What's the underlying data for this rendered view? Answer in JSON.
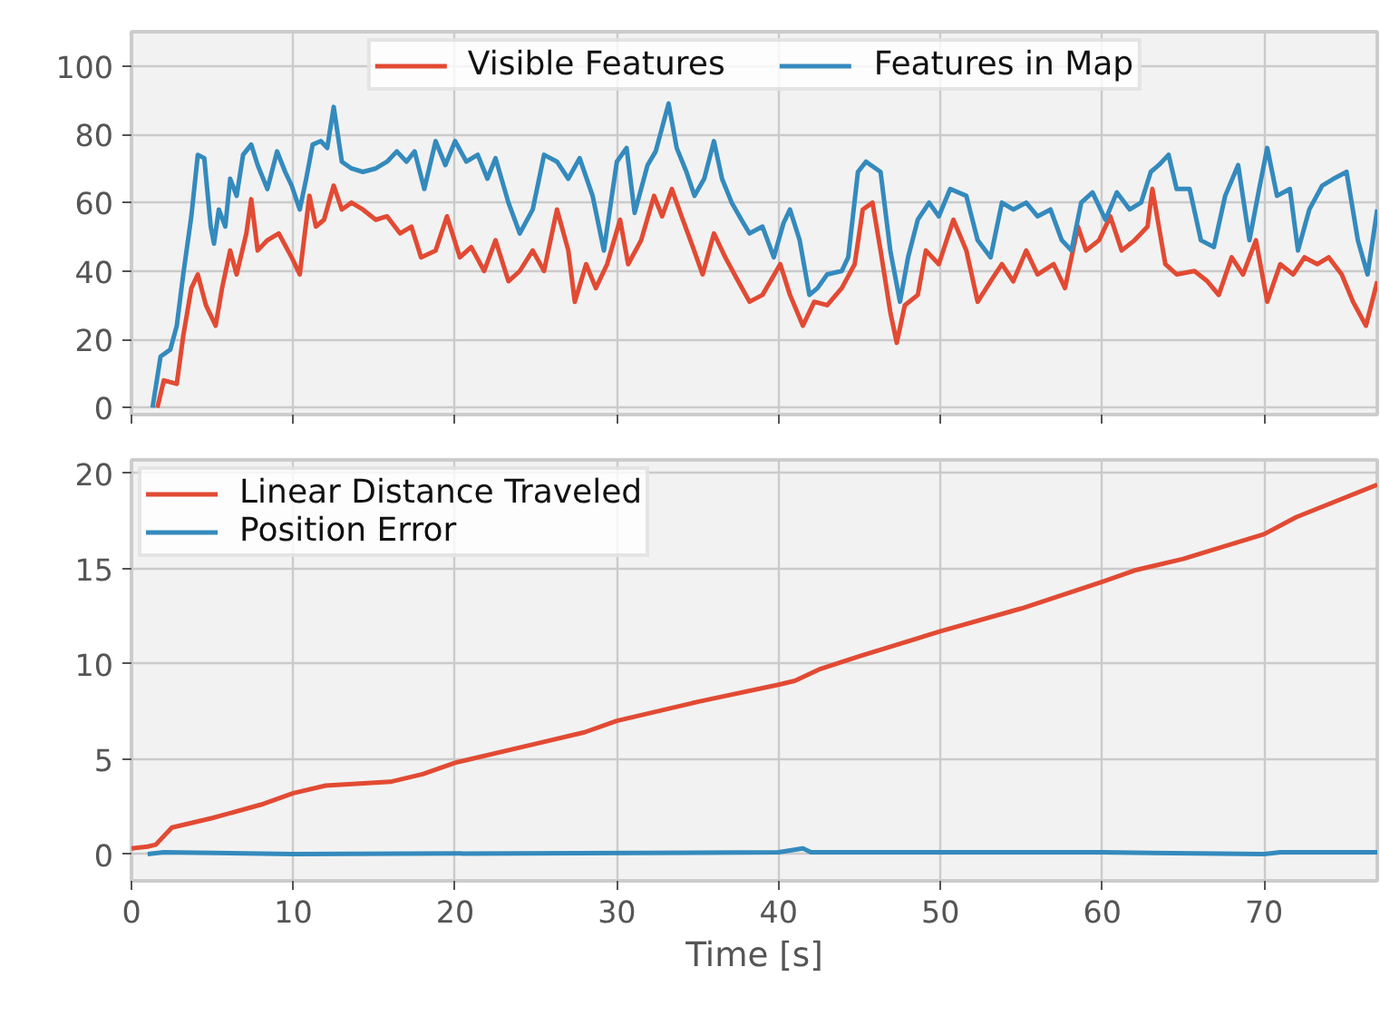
{
  "chart_data": [
    {
      "type": "line",
      "xlim": [
        0,
        77
      ],
      "ylim": [
        -2,
        110
      ],
      "xticks": [
        0,
        10,
        20,
        30,
        40,
        50,
        60,
        70
      ],
      "yticks": [
        0,
        20,
        40,
        60,
        80,
        100
      ],
      "tick_labels": "y",
      "grid": true,
      "legend": "top",
      "line_style": "solid",
      "marker": "none",
      "series": [
        {
          "name": "Visible Features",
          "color": "#e24a33",
          "x": [
            1.6,
            2.0,
            2.8,
            3.2,
            3.7,
            4.1,
            4.6,
            5.2,
            5.6,
            6.1,
            6.5,
            7.1,
            7.4,
            7.8,
            8.4,
            9.1,
            9.9,
            10.4,
            11.0,
            11.4,
            11.9,
            12.5,
            13.0,
            13.6,
            14.3,
            15.1,
            15.8,
            16.6,
            17.3,
            17.9,
            18.8,
            19.5,
            20.3,
            21.0,
            21.8,
            22.5,
            23.3,
            24.0,
            24.8,
            25.5,
            26.3,
            27.0,
            27.4,
            28.1,
            28.7,
            29.4,
            30.2,
            30.7,
            31.5,
            32.3,
            32.8,
            33.4,
            34.0,
            34.7,
            35.3,
            36.0,
            36.7,
            37.5,
            38.2,
            39.0,
            40.1,
            40.7,
            41.5,
            42.2,
            43.0,
            43.9,
            44.7,
            45.2,
            45.8,
            46.3,
            46.9,
            47.3,
            47.8,
            48.6,
            49.1,
            49.9,
            50.8,
            51.6,
            52.3,
            53.1,
            53.8,
            54.5,
            55.3,
            56.0,
            57.0,
            57.7,
            58.5,
            59.0,
            59.8,
            60.5,
            61.2,
            62.0,
            62.8,
            63.1,
            63.9,
            64.6,
            65.7,
            66.5,
            67.2,
            68.0,
            68.7,
            69.5,
            70.2,
            71.0,
            71.8,
            72.5,
            73.3,
            74.0,
            74.8,
            75.5,
            76.3,
            77.0
          ],
          "values": [
            0,
            8,
            7,
            21,
            35,
            39,
            30,
            24,
            35,
            46,
            39,
            51,
            61,
            46,
            49,
            51,
            44,
            39,
            62,
            53,
            55,
            65,
            58,
            60,
            58,
            55,
            56,
            51,
            53,
            44,
            46,
            56,
            44,
            47,
            40,
            49,
            37,
            40,
            46,
            40,
            58,
            46,
            31,
            42,
            35,
            42,
            55,
            42,
            49,
            62,
            56,
            64,
            56,
            47,
            39,
            51,
            44,
            37,
            31,
            33,
            42,
            33,
            24,
            31,
            30,
            35,
            42,
            58,
            60,
            46,
            28,
            19,
            30,
            33,
            46,
            42,
            55,
            46,
            31,
            37,
            42,
            37,
            46,
            39,
            42,
            35,
            53,
            46,
            49,
            56,
            46,
            49,
            53,
            64,
            42,
            39,
            40,
            37,
            33,
            44,
            39,
            49,
            31,
            42,
            39,
            44,
            42,
            44,
            39,
            31,
            24,
            37
          ]
        },
        {
          "name": "Features in Map",
          "color": "#348abd",
          "x": [
            1.3,
            1.8,
            2.4,
            2.8,
            3.2,
            3.7,
            4.1,
            4.5,
            4.9,
            5.1,
            5.4,
            5.8,
            6.1,
            6.5,
            6.9,
            7.4,
            7.8,
            8.4,
            9.0,
            9.5,
            9.9,
            10.4,
            10.8,
            11.2,
            11.7,
            12.1,
            12.5,
            13.0,
            13.6,
            14.3,
            15.1,
            15.8,
            16.4,
            17.0,
            17.5,
            18.1,
            18.8,
            19.4,
            20.0,
            20.7,
            21.4,
            22.0,
            22.5,
            23.3,
            24.0,
            24.8,
            25.5,
            26.3,
            27.0,
            27.7,
            28.5,
            29.2,
            30.0,
            30.6,
            31.1,
            31.9,
            32.4,
            33.2,
            33.7,
            34.3,
            34.8,
            35.4,
            36.0,
            36.5,
            37.1,
            37.7,
            38.2,
            39.0,
            39.7,
            40.3,
            40.7,
            41.3,
            41.9,
            42.4,
            43.0,
            43.9,
            44.3,
            44.9,
            45.4,
            46.3,
            46.9,
            47.5,
            48.0,
            48.6,
            49.3,
            49.9,
            50.6,
            51.6,
            52.3,
            53.1,
            53.8,
            54.5,
            55.3,
            56.0,
            56.8,
            57.5,
            58.1,
            58.7,
            59.4,
            60.2,
            60.9,
            61.7,
            62.4,
            63.0,
            63.5,
            64.1,
            64.6,
            65.4,
            66.1,
            66.9,
            67.6,
            68.4,
            69.1,
            69.7,
            70.2,
            70.8,
            71.6,
            72.1,
            72.8,
            73.6,
            74.3,
            75.1,
            75.8,
            76.4,
            77.0
          ],
          "values": [
            0,
            15,
            17,
            24,
            39,
            56,
            74,
            73,
            53,
            48,
            58,
            53,
            67,
            62,
            74,
            77,
            71,
            64,
            75,
            69,
            65,
            58,
            67,
            77,
            78,
            76,
            88,
            72,
            70,
            69,
            70,
            72,
            75,
            72,
            75,
            64,
            78,
            71,
            78,
            72,
            74,
            67,
            73,
            60,
            51,
            58,
            74,
            72,
            67,
            73,
            62,
            46,
            72,
            76,
            57,
            71,
            75,
            89,
            76,
            69,
            62,
            67,
            78,
            67,
            60,
            55,
            51,
            53,
            44,
            54,
            58,
            49,
            33,
            35,
            39,
            40,
            44,
            69,
            72,
            69,
            46,
            31,
            44,
            55,
            60,
            56,
            64,
            62,
            49,
            44,
            60,
            58,
            60,
            56,
            58,
            49,
            46,
            60,
            63,
            55,
            63,
            58,
            60,
            69,
            71,
            74,
            64,
            64,
            49,
            47,
            62,
            71,
            49,
            64,
            76,
            62,
            64,
            46,
            58,
            65,
            67,
            69,
            49,
            39,
            58
          ]
        }
      ]
    },
    {
      "type": "line",
      "xlabel": "Time [s]",
      "xlim": [
        0,
        77
      ],
      "ylim": [
        -1.4,
        20.7
      ],
      "xticks": [
        0,
        10,
        20,
        30,
        40,
        50,
        60,
        70
      ],
      "yticks": [
        0,
        5,
        10,
        15,
        20
      ],
      "grid": true,
      "legend": "top left",
      "line_style": "solid",
      "marker": "none",
      "series": [
        {
          "name": "Linear Distance Traveled",
          "color": "#e24a33",
          "x": [
            0,
            1,
            1.5,
            2.5,
            5,
            8,
            10,
            12,
            16,
            18,
            20,
            25,
            28,
            30,
            35,
            40,
            41,
            42.5,
            45,
            50,
            55,
            60,
            62,
            65,
            70,
            72,
            77
          ],
          "values": [
            0.3,
            0.4,
            0.5,
            1.4,
            1.9,
            2.6,
            3.2,
            3.6,
            3.8,
            4.2,
            4.8,
            5.8,
            6.4,
            7.0,
            8.0,
            8.9,
            9.1,
            9.7,
            10.4,
            11.7,
            12.9,
            14.3,
            14.9,
            15.5,
            16.8,
            17.7,
            19.4
          ]
        },
        {
          "name": "Position Error",
          "color": "#348abd",
          "x": [
            1,
            2,
            10,
            40,
            41.5,
            42,
            60,
            70,
            71,
            77
          ],
          "values": [
            0,
            0.1,
            0,
            0.1,
            0.3,
            0.1,
            0.1,
            0,
            0.1,
            0.1
          ]
        }
      ]
    }
  ]
}
